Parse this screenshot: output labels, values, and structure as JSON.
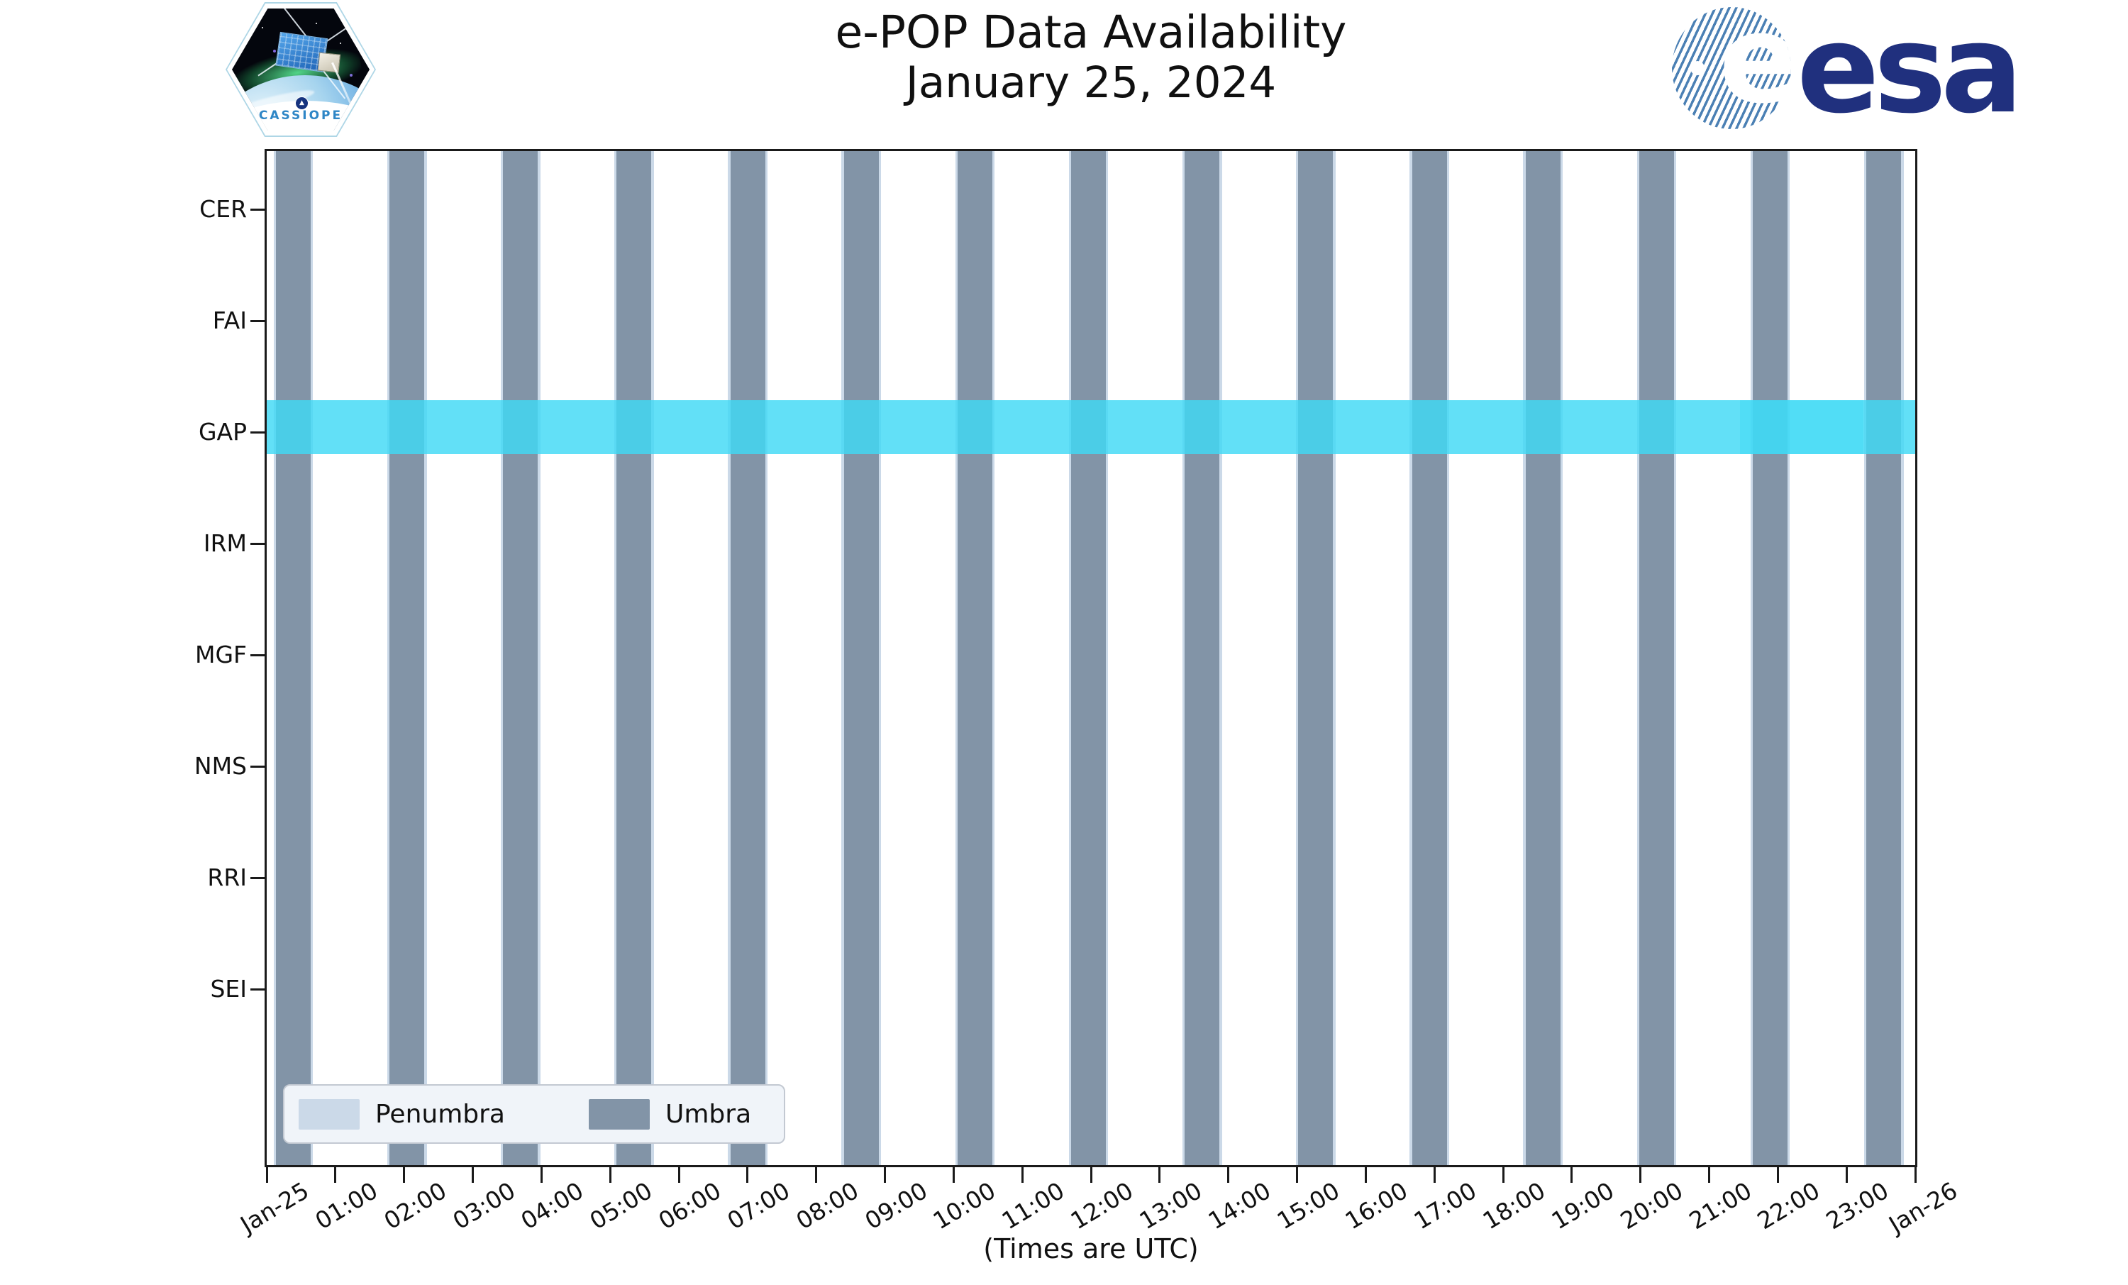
{
  "header": {
    "title": "e-POP Data Availability",
    "subtitle": "January 25, 2024",
    "cassiope_patch_label": "CASSIOPE",
    "esa_globe_letter": "e",
    "esa_wordmark": "esa"
  },
  "chart_data": {
    "type": "bar",
    "orientation": "horizontal-timeline",
    "title": "e-POP Data Availability",
    "subtitle": "January 25, 2024",
    "xlabel": "(Times are UTC)",
    "categories": [
      "CER",
      "FAI",
      "GAP",
      "IRM",
      "MGF",
      "NMS",
      "RRI",
      "SEI"
    ],
    "x_axis": {
      "range_hours": [
        0,
        24
      ],
      "tick_labels": [
        "Jan-25",
        "01:00",
        "02:00",
        "03:00",
        "04:00",
        "05:00",
        "06:00",
        "07:00",
        "08:00",
        "09:00",
        "10:00",
        "11:00",
        "12:00",
        "13:00",
        "14:00",
        "15:00",
        "16:00",
        "17:00",
        "18:00",
        "19:00",
        "20:00",
        "21:00",
        "22:00",
        "23:00",
        "Jan-26"
      ]
    },
    "grid": false,
    "legend_position": "lower left",
    "legend": {
      "entries": [
        {
          "label": "Penumbra",
          "color": "#cbd9e8"
        },
        {
          "label": "Umbra",
          "color": "#8294a7"
        }
      ]
    },
    "colors": {
      "umbra": "#8294a7",
      "penumbra": "#cbd9e8",
      "gap_availability_cyan": "#40d9f5",
      "axis": "#1a1a1a",
      "esa_navy": "#20307e",
      "cassiope_text_blue": "#2e86c6"
    },
    "availability": {
      "instrument": "GAP",
      "segments": [
        {
          "start": "00:00",
          "end": "24:00",
          "start_h": 0.0,
          "end_h": 24.0
        }
      ],
      "overlap_segment": {
        "start": "21:27",
        "end": "23:15",
        "start_h": 21.45,
        "end_h": 23.25
      }
    },
    "penumbra_margin_h": 0.035,
    "umbra_windows": [
      {
        "start": "00:08",
        "end": "00:38",
        "start_h": 0.134,
        "end_h": 0.64
      },
      {
        "start": "01:47",
        "end": "02:18",
        "start_h": 1.788,
        "end_h": 2.294
      },
      {
        "start": "03:27",
        "end": "03:57",
        "start_h": 3.442,
        "end_h": 3.948
      },
      {
        "start": "05:06",
        "end": "05:36",
        "start_h": 5.096,
        "end_h": 5.602
      },
      {
        "start": "06:45",
        "end": "07:15",
        "start_h": 6.75,
        "end_h": 7.256
      },
      {
        "start": "08:24",
        "end": "08:55",
        "start_h": 8.404,
        "end_h": 8.91
      },
      {
        "start": "10:03",
        "end": "10:34",
        "start_h": 10.058,
        "end_h": 10.564
      },
      {
        "start": "11:43",
        "end": "12:13",
        "start_h": 11.712,
        "end_h": 12.218
      },
      {
        "start": "13:22",
        "end": "13:52",
        "start_h": 13.366,
        "end_h": 13.872
      },
      {
        "start": "15:01",
        "end": "15:32",
        "start_h": 15.02,
        "end_h": 15.526
      },
      {
        "start": "16:40",
        "end": "17:11",
        "start_h": 16.674,
        "end_h": 17.18
      },
      {
        "start": "18:20",
        "end": "18:50",
        "start_h": 18.328,
        "end_h": 18.834
      },
      {
        "start": "19:59",
        "end": "20:29",
        "start_h": 19.982,
        "end_h": 20.488
      },
      {
        "start": "21:38",
        "end": "22:09",
        "start_h": 21.636,
        "end_h": 22.142
      },
      {
        "start": "23:17",
        "end": "23:48",
        "start_h": 23.29,
        "end_h": 23.796
      }
    ]
  }
}
